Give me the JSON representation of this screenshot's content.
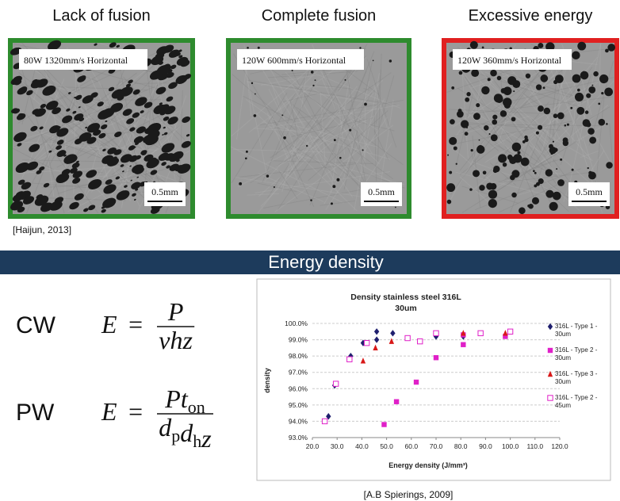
{
  "panels": [
    {
      "title": "Lack of fusion",
      "caption": "80W 1320mm/s Horizontal",
      "scale": "0.5mm",
      "border": "#2e8b2e"
    },
    {
      "title": "Complete fusion",
      "caption": "120W 600mm/s Horizontal",
      "scale": "0.5mm",
      "border": "#2e8b2e"
    },
    {
      "title": "Excessive energy",
      "caption": "120W 360mm/s Horizontal",
      "scale": "0.5mm",
      "border": "#e02020"
    }
  ],
  "citation_top": "[Haijun, 2013]",
  "banner": "Energy density",
  "equations": [
    {
      "label": "CW",
      "lhs": "E",
      "op": "=",
      "numerator": [
        {
          "text": "P"
        }
      ],
      "denominator": [
        {
          "text": "vhz"
        }
      ]
    },
    {
      "label": "PW",
      "lhs": "E",
      "op": "=",
      "numerator": [
        {
          "text": "Pt",
          "sub": "on"
        }
      ],
      "denominator": [
        {
          "text": "d",
          "sub": "p"
        },
        {
          "text": "d",
          "sub": "h"
        },
        {
          "text": "z"
        }
      ]
    }
  ],
  "chart_data": {
    "type": "scatter",
    "title": "Density stainless steel 316L",
    "subtitle": "30um",
    "xlabel": "Energy density (J/mm³)",
    "ylabel": "density",
    "xlim": [
      20,
      120
    ],
    "xticks": [
      {
        "value": 20,
        "label": "20.0"
      },
      {
        "value": 30,
        "label": "30.0"
      },
      {
        "value": 40,
        "label": "40.0"
      },
      {
        "value": 50,
        "label": "50.0"
      },
      {
        "value": 60,
        "label": "60.0"
      },
      {
        "value": 70,
        "label": "70.0"
      },
      {
        "value": 80,
        "label": "80.0"
      },
      {
        "value": 90,
        "label": "90.0"
      },
      {
        "value": 100,
        "label": "100.0"
      },
      {
        "value": 110,
        "label": "110.0"
      },
      {
        "value": 120,
        "label": "120.0"
      }
    ],
    "ylim": [
      93,
      100
    ],
    "yticks": [
      {
        "value": 93,
        "label": "93.0%"
      },
      {
        "value": 94,
        "label": "94.0%"
      },
      {
        "value": 95,
        "label": "95.0%"
      },
      {
        "value": 96,
        "label": "96.0%"
      },
      {
        "value": 97,
        "label": "97.0%"
      },
      {
        "value": 98,
        "label": "98.0%"
      },
      {
        "value": 99,
        "label": "99.0%"
      },
      {
        "value": 100,
        "label": "100.0%"
      }
    ],
    "grid": true,
    "series": [
      {
        "name": "316L - Type 1 - 30um",
        "color": "#1f1f6e",
        "marker": "diamond",
        "x": [
          26.5,
          29,
          35.5,
          40.5,
          46,
          46,
          52.5,
          70,
          81
        ],
        "values": [
          94.3,
          96.2,
          98.0,
          98.8,
          99.0,
          99.5,
          99.4,
          99.2,
          99.2
        ]
      },
      {
        "name": "316L - Type 2 - 30um",
        "color": "#e020c8",
        "marker": "square",
        "x": [
          49,
          54,
          62,
          70,
          81,
          81,
          98
        ],
        "values": [
          93.8,
          95.2,
          96.4,
          97.9,
          98.7,
          99.3,
          99.2
        ]
      },
      {
        "name": "316L - Type 3 - 30um",
        "color": "#d81818",
        "marker": "triangle",
        "x": [
          40.5,
          45.5,
          52,
          81,
          98
        ],
        "values": [
          97.7,
          98.5,
          98.9,
          99.4,
          99.4
        ]
      },
      {
        "name": "316L - Type 2 - 45um",
        "color": "#e020c8",
        "marker": "open-square",
        "x": [
          25,
          29.5,
          35,
          42,
          58.5,
          63.5,
          70,
          88,
          100
        ],
        "values": [
          94.0,
          96.3,
          97.8,
          98.8,
          99.1,
          98.9,
          99.4,
          99.4,
          99.5
        ]
      }
    ]
  },
  "citation_bottom": "[A.B Spierings, 2009]"
}
